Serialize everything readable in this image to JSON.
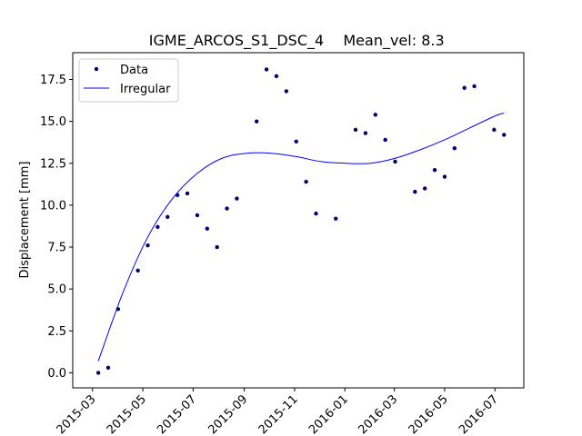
{
  "chart_data": {
    "type": "scatter",
    "title_left": "IGME_ARCOS_S1_DSC_4",
    "title_right": "Mean_vel: 8.3",
    "xlabel": "",
    "ylabel": "Displacement [mm]",
    "xlim": [
      "2015-02-05",
      "2016-08-05"
    ],
    "ylim": [
      -0.9,
      19.1
    ],
    "x_ticks": [
      "2015-03",
      "2015-05",
      "2015-07",
      "2015-09",
      "2015-11",
      "2016-01",
      "2016-03",
      "2016-05",
      "2016-07"
    ],
    "y_ticks": [
      "0.0",
      "2.5",
      "5.0",
      "7.5",
      "10.0",
      "12.5",
      "15.0",
      "17.5"
    ],
    "legend_position": "top-left",
    "series": [
      {
        "name": "Data",
        "style": "points",
        "color": "#00006e",
        "x": [
          "2015-03-08",
          "2015-03-20",
          "2015-04-01",
          "2015-04-25",
          "2015-05-07",
          "2015-05-19",
          "2015-05-31",
          "2015-06-12",
          "2015-06-24",
          "2015-07-06",
          "2015-07-18",
          "2015-07-30",
          "2015-08-11",
          "2015-08-23",
          "2015-09-16",
          "2015-09-28",
          "2015-10-10",
          "2015-10-22",
          "2015-11-03",
          "2015-11-15",
          "2015-11-27",
          "2015-12-21",
          "2016-01-14",
          "2016-01-26",
          "2016-02-07",
          "2016-02-19",
          "2016-03-02",
          "2016-03-26",
          "2016-04-07",
          "2016-04-19",
          "2016-05-01",
          "2016-05-13",
          "2016-05-25",
          "2016-06-06",
          "2016-06-30",
          "2016-07-12"
        ],
        "y": [
          0.0,
          0.3,
          3.8,
          6.1,
          7.6,
          8.7,
          9.3,
          10.6,
          10.7,
          9.4,
          8.6,
          7.5,
          9.8,
          10.4,
          15.0,
          18.1,
          17.7,
          16.8,
          13.8,
          11.4,
          9.5,
          9.2,
          14.5,
          14.3,
          15.4,
          13.9,
          12.6,
          10.8,
          11.0,
          12.1,
          11.7,
          13.4,
          17.0,
          17.1,
          14.5,
          14.2
        ]
      },
      {
        "name": "Irregular",
        "style": "line",
        "color": "#0000ff",
        "x": [
          "2015-03-08",
          "2015-04-07",
          "2015-05-07",
          "2015-06-06",
          "2015-07-06",
          "2015-08-05",
          "2015-09-04",
          "2015-10-04",
          "2015-11-03",
          "2015-12-03",
          "2016-01-02",
          "2016-02-01",
          "2016-03-02",
          "2016-04-01",
          "2016-05-01",
          "2016-05-31",
          "2016-06-30",
          "2016-07-12"
        ],
        "y": [
          0.7,
          4.8,
          8.1,
          10.4,
          11.9,
          12.8,
          13.1,
          13.1,
          12.9,
          12.6,
          12.5,
          12.5,
          12.8,
          13.3,
          13.9,
          14.6,
          15.3,
          15.5
        ]
      }
    ]
  }
}
